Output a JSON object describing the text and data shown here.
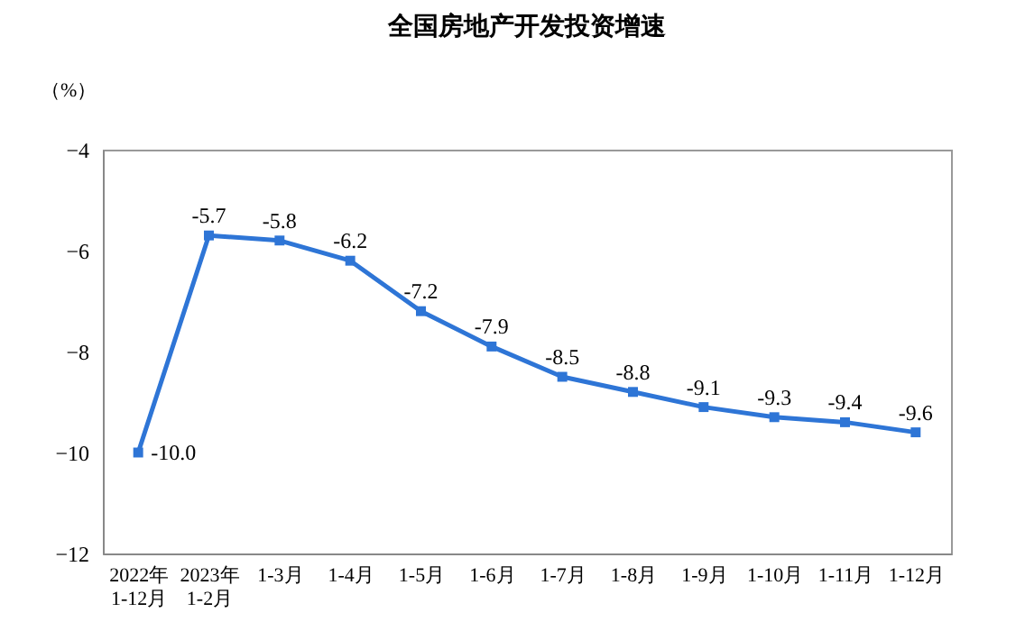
{
  "chart_data": {
    "type": "line",
    "title": "全国房地产开发投资增速",
    "ylabel": "（%）",
    "categories": [
      "2022年\n1-12月",
      "2023年\n1-2月",
      "1-3月",
      "1-4月",
      "1-5月",
      "1-6月",
      "1-7月",
      "1-8月",
      "1-9月",
      "1-10月",
      "1-11月",
      "1-12月"
    ],
    "series": [
      {
        "color": "#2e75d6",
        "values": [
          -10.0,
          -5.7,
          -5.8,
          -6.2,
          -7.2,
          -7.9,
          -8.5,
          -8.8,
          -9.1,
          -9.3,
          -9.4,
          -9.6
        ],
        "value_labels": [
          "-10.0",
          "-5.7",
          "-5.8",
          "-6.2",
          "-7.2",
          "-7.9",
          "-8.5",
          "-8.8",
          "-9.1",
          "-9.3",
          "-9.4",
          "-9.6"
        ]
      }
    ],
    "ylim": [
      -12,
      -4
    ],
    "yticks": [
      -12,
      -10,
      -8,
      -6,
      -4
    ],
    "grid": false,
    "legend": false,
    "marker": "square",
    "line_style": "solid"
  }
}
